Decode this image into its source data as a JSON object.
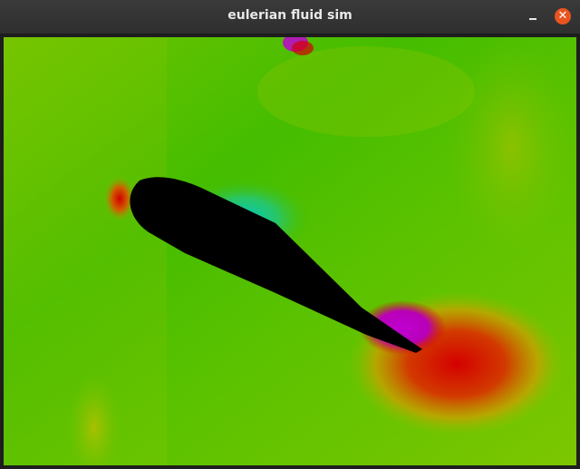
{
  "window": {
    "title": "eulerian fluid sim",
    "close_glyph": "✕",
    "icons": [
      "minimize-icon",
      "close-icon"
    ],
    "accent_color": "#e95420"
  },
  "simulation": {
    "obstacle_color": "#000000",
    "field_colors": [
      "#3fbf00",
      "#7fc800",
      "#d8b400",
      "#d00000",
      "#c000d0",
      "#00d0a0"
    ]
  }
}
